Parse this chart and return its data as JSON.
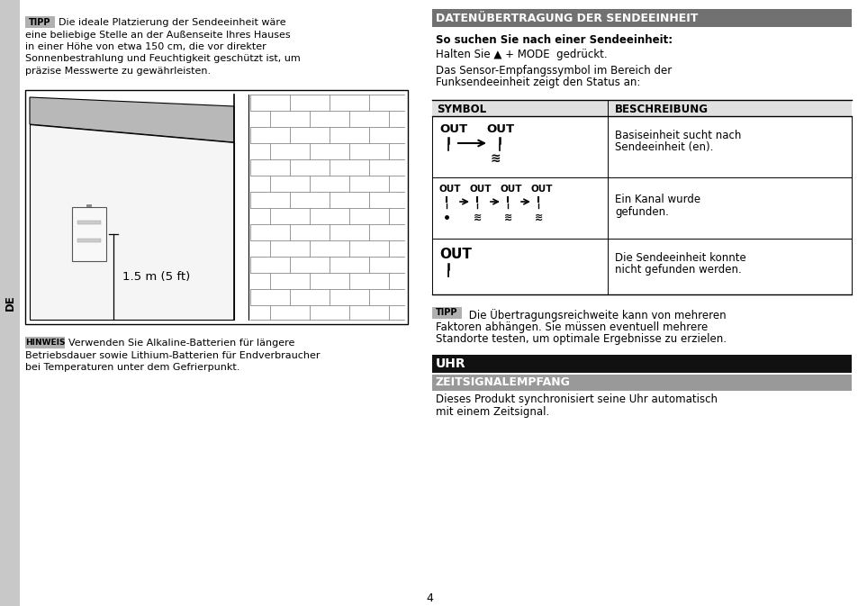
{
  "bg_color": "#ffffff",
  "page_number": "4",
  "left_tab_color": "#c8c8c8",
  "left_tab_text": "DE",
  "tipp_box_color": "#b0b0b0",
  "hinweis_box_color": "#b0b0b0",
  "tipp1_text": "Die ideale Platzierung der Sendeeinheit wäre eine beliebige Stelle an der Außenseite Ihres Hauses\nin einer Höhe von etwa 150 cm, die vor direkter Sonnenbestrahlung und Feuchtigkeit geschützt ist, um\npräzise Messwerte zu gewährleisten.",
  "hinweis_text": "Verwenden Sie Alkaline-Batterien für längere Betriebsdauer sowie Lithium-Batterien für Endverbraucher\nbei Temperaturen unter dem Gefrierpunkt.",
  "section1_header": "DATENÜBERTRAGUNG DER SENDEEINHEIT",
  "section1_header_bg": "#717171",
  "section1_header_fg": "#ffffff",
  "subsection1_bold": "So suchen Sie nach einer Sendeeinheit:",
  "para1_pre": "Halten Sie ",
  "para1_sym": "▲",
  "para1_mode": " + MODE ",
  "para1_post": " gedrückt.",
  "para2_line1": "Das Sensor-Empfangssymbol im Bereich der",
  "para2_line2": "Funksendeeinheit zeigt den Status an:",
  "table_header_symbol": "SYMBOL",
  "table_header_desc": "BESCHREIBUNG",
  "row1_desc_1": "Basiseinheit sucht nach",
  "row1_desc_2": "Sendeeinheit (en).",
  "row2_desc_1": "Ein Kanal wurde",
  "row2_desc_2": "gefunden.",
  "row3_desc_1": "Die Sendeeinheit konnte",
  "row3_desc_2": "nicht gefunden werden.",
  "tipp2_text_1": " Die Übertragungsreichweite kann von mehreren",
  "tipp2_text_2": "Faktoren abhängen. Sie müssen eventuell mehrere",
  "tipp2_text_3": "Standorte testen, um optimale Ergebnisse zu erzielen.",
  "section2_header": "UHR",
  "section2_header_bg": "#111111",
  "section2_header_fg": "#ffffff",
  "section3_header": "ZEITSIGNALEMPFANG",
  "section3_header_bg": "#999999",
  "section3_header_fg": "#ffffff",
  "para3_line1": "Dieses Produkt synchronisiert seine Uhr automatisch",
  "para3_line2": "mit einem Zeitsignal."
}
